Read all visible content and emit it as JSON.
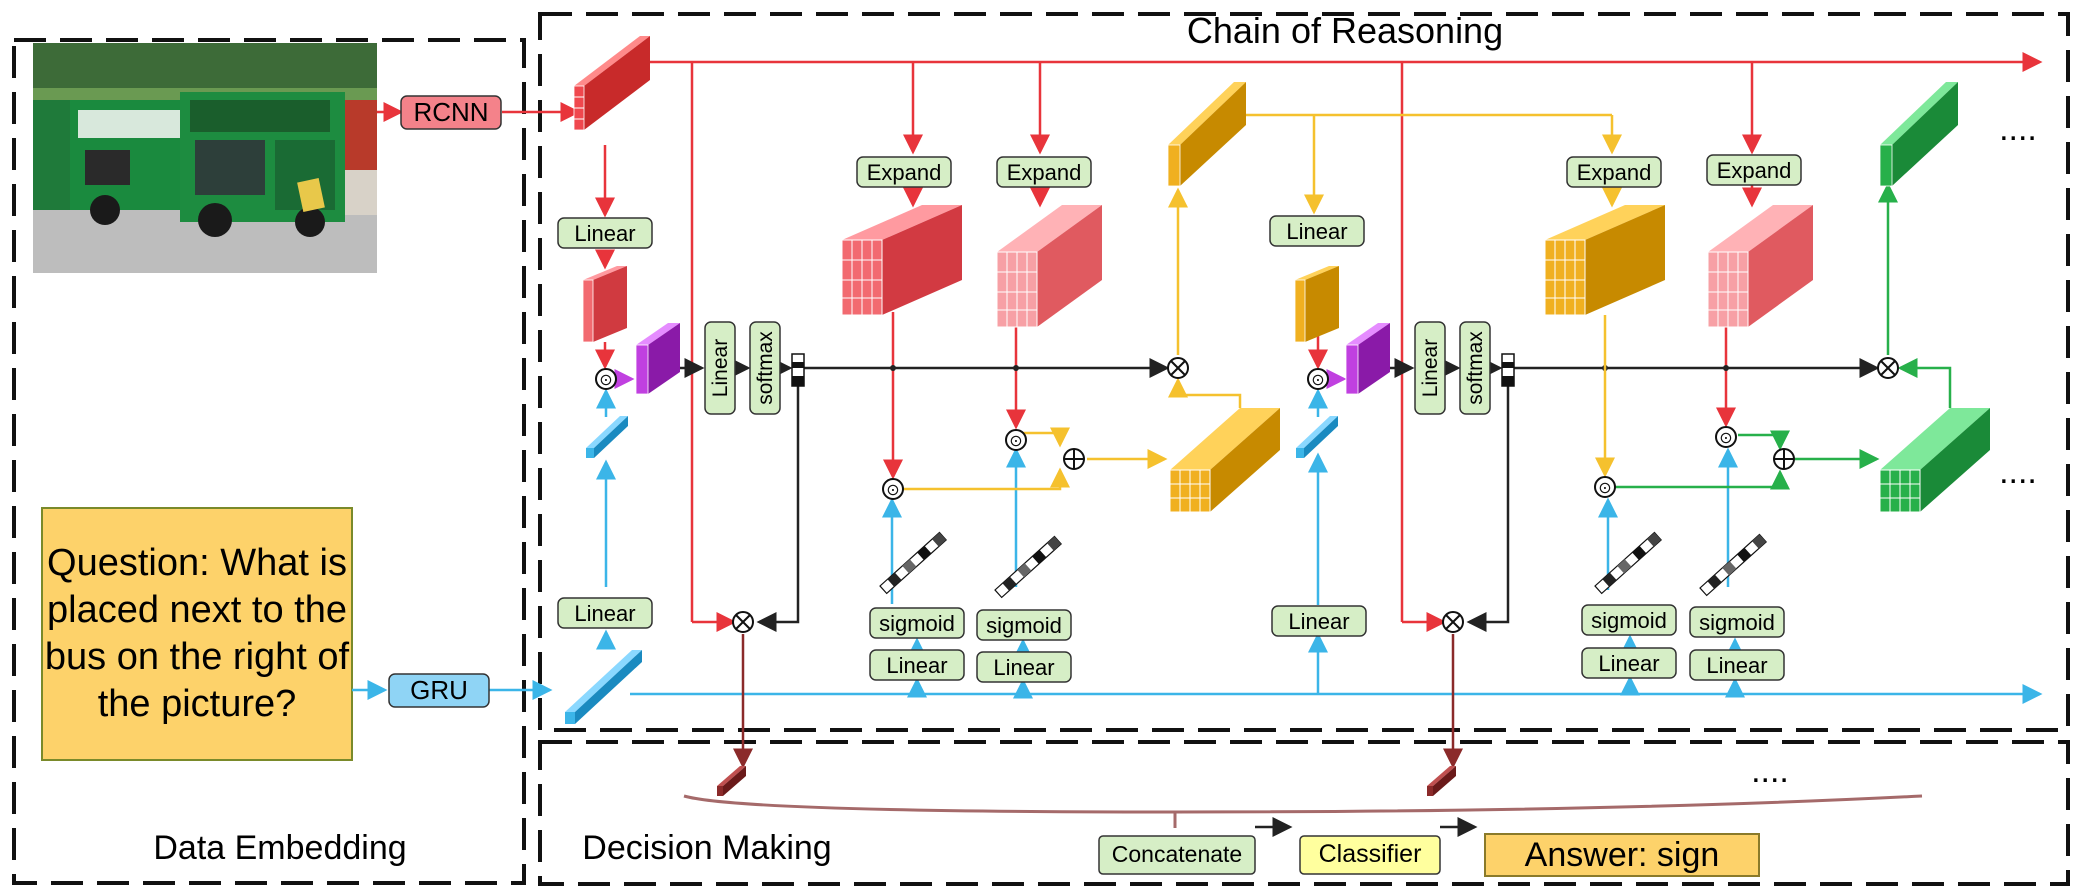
{
  "sections": {
    "embedding": "Data Embedding",
    "reasoning": "Chain of Reasoning",
    "decision": "Decision Making"
  },
  "question": "Question: What is placed next to the bus on the right of the picture?",
  "labels": {
    "rcnn": "RCNN",
    "gru": "GRU",
    "linear": "Linear",
    "softmax": "softmax",
    "expand": "Expand",
    "sigmoid": "sigmoid",
    "concatenate": "Concatenate",
    "classifier": "Classifier",
    "answer": "Answer: sign",
    "ellipsis": "....",
    "hadamard": "⊙",
    "plus": "⊕",
    "times": "⊗"
  },
  "colors": {
    "red": "#e8343b",
    "red_light": "#f7a7ab",
    "blue": "#3bb5e8",
    "yellow": "#f5c12e",
    "orange": "#f0a800",
    "green": "#27b04a",
    "purple": "#b21fd8",
    "maroon": "#8b2a2a",
    "label_green": "#d6eec6",
    "label_yellow": "#ffff9e",
    "answer_fill": "#fdd26a"
  }
}
